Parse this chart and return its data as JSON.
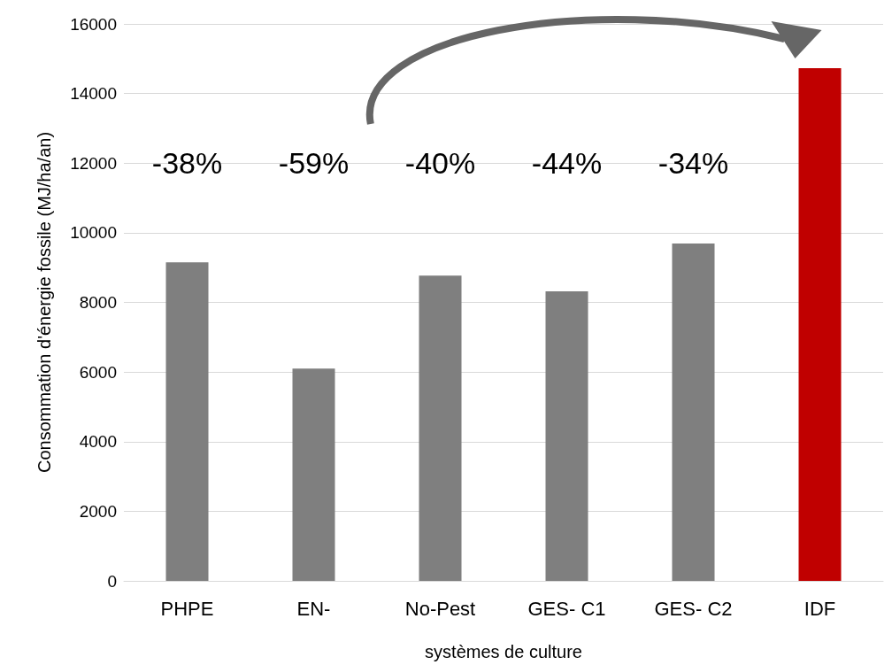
{
  "chart_data": {
    "type": "bar",
    "xlabel": "systèmes de culture",
    "ylabel": "Consommation d'énergie fossile (MJ/ha/an)",
    "categories": [
      "PHPE",
      "EN-",
      "No-Pest",
      "GES- C1",
      "GES- C2",
      "IDF"
    ],
    "values": [
      9150,
      6100,
      8770,
      8320,
      9690,
      14730
    ],
    "colors": [
      "#7f7f7f",
      "#7f7f7f",
      "#7f7f7f",
      "#7f7f7f",
      "#7f7f7f",
      "#c00000"
    ],
    "ylim": [
      0,
      16000
    ],
    "yticks": [
      0,
      2000,
      4000,
      6000,
      8000,
      10000,
      12000,
      14000,
      16000
    ],
    "grid": "y",
    "annotations": [
      "-38%",
      "-59%",
      "-40%",
      "-44%",
      "-34%"
    ]
  }
}
